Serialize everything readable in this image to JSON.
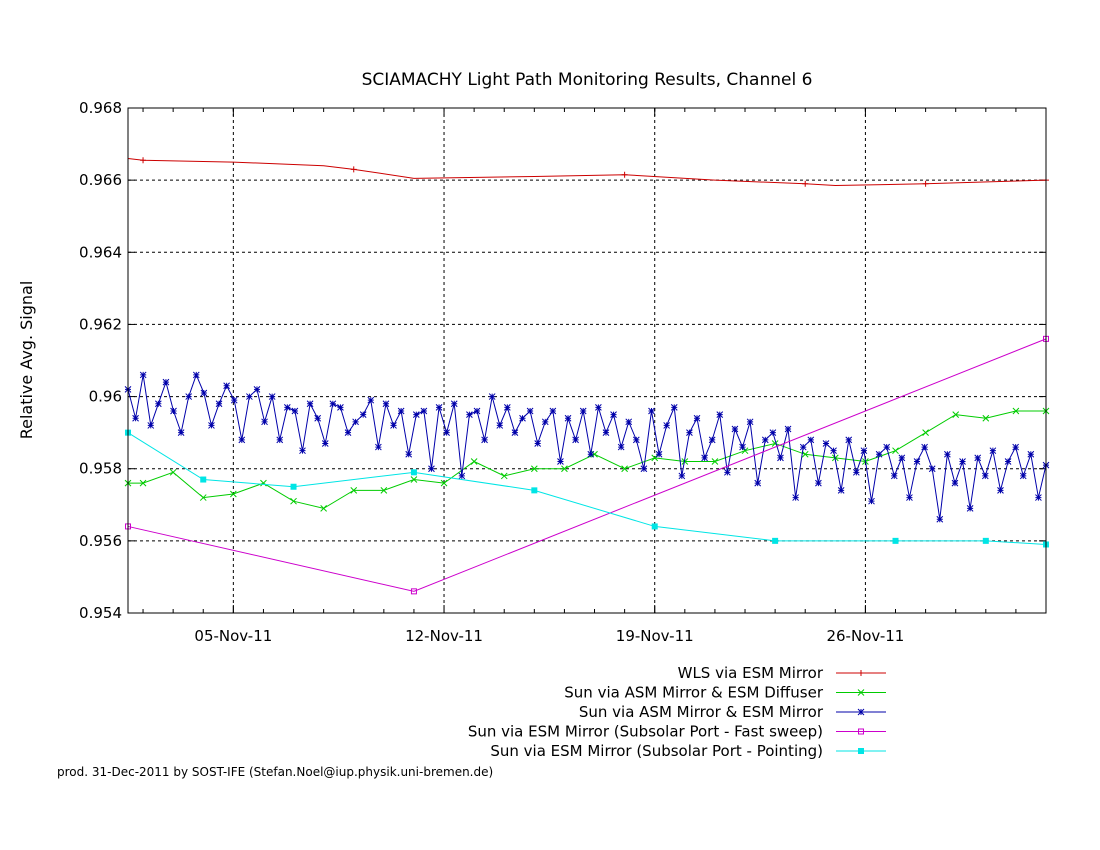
{
  "chart_data": {
    "type": "line",
    "title": "SCIAMACHY Light Path Monitoring Results, Channel 6",
    "xlabel": "",
    "ylabel": "Relative Avg. Signal",
    "ylim": [
      0.954,
      0.968
    ],
    "yticks": [
      "0.954",
      "0.956",
      "0.958",
      "0.96",
      "0.962",
      "0.964",
      "0.966",
      "0.968"
    ],
    "xlim": [
      "2011-11-01 12:00",
      "2011-12-02"
    ],
    "xticks": [
      {
        "date": "2011-11-05",
        "label": "05-Nov-11"
      },
      {
        "date": "2011-11-12",
        "label": "12-Nov-11"
      },
      {
        "date": "2011-11-19",
        "label": "19-Nov-11"
      },
      {
        "date": "2011-11-26",
        "label": "26-Nov-11"
      }
    ],
    "grid": true,
    "legend_position": "bottom-right",
    "series": [
      {
        "name": "WLS via ESM Mirror",
        "color": "#cc0000",
        "marker": "plus",
        "x": [
          "2011-11-01 12:00",
          "2011-11-02",
          "2011-11-05",
          "2011-11-08",
          "2011-11-09",
          "2011-11-11",
          "2011-11-15",
          "2011-11-18",
          "2011-11-21",
          "2011-11-24",
          "2011-11-25",
          "2011-11-28",
          "2011-12-02"
        ],
        "y": [
          0.9666,
          0.96655,
          0.9665,
          0.9664,
          0.9663,
          0.96605,
          0.9661,
          0.96615,
          0.966,
          0.9659,
          0.96585,
          0.9659,
          0.966
        ]
      },
      {
        "name": "Sun via ASM Mirror & ESM Diffuser",
        "color": "#00cc00",
        "marker": "x",
        "x": [
          "2011-11-01 12:00",
          "2011-11-02",
          "2011-11-03",
          "2011-11-04",
          "2011-11-05",
          "2011-11-06",
          "2011-11-07",
          "2011-11-08",
          "2011-11-09",
          "2011-11-10",
          "2011-11-11",
          "2011-11-12",
          "2011-11-13",
          "2011-11-14",
          "2011-11-15",
          "2011-11-16",
          "2011-11-17",
          "2011-11-18",
          "2011-11-19",
          "2011-11-20",
          "2011-11-21",
          "2011-11-22",
          "2011-11-23",
          "2011-11-24",
          "2011-11-25",
          "2011-11-26",
          "2011-11-27",
          "2011-11-28",
          "2011-11-29",
          "2011-11-30",
          "2011-12-01",
          "2011-12-02"
        ],
        "y": [
          0.9576,
          0.9576,
          0.9579,
          0.9572,
          0.9573,
          0.9576,
          0.9571,
          0.9569,
          0.9574,
          0.9574,
          0.9577,
          0.9576,
          0.9582,
          0.9578,
          0.958,
          0.958,
          0.9584,
          0.958,
          0.9583,
          0.9582,
          0.9582,
          0.9585,
          0.9587,
          0.9584,
          0.9583,
          0.9582,
          0.9585,
          0.959,
          0.9595,
          0.9594,
          0.9596,
          0.9596
        ]
      },
      {
        "name": "Sun via ASM Mirror & ESM Mirror",
        "color": "#0000aa",
        "marker": "star",
        "x_start": "2011-11-01 12:00",
        "x_end": "2011-12-02",
        "y": [
          0.9602,
          0.9594,
          0.9606,
          0.9592,
          0.9598,
          0.9604,
          0.9596,
          0.959,
          0.96,
          0.9606,
          0.9601,
          0.9592,
          0.9598,
          0.9603,
          0.9599,
          0.9588,
          0.96,
          0.9602,
          0.9593,
          0.96,
          0.9588,
          0.9597,
          0.9596,
          0.9585,
          0.9598,
          0.9594,
          0.9587,
          0.9598,
          0.9597,
          0.959,
          0.9593,
          0.9595,
          0.9599,
          0.9586,
          0.9598,
          0.9592,
          0.9596,
          0.9584,
          0.9595,
          0.9596,
          0.958,
          0.9597,
          0.959,
          0.9598,
          0.9578,
          0.9595,
          0.9596,
          0.9588,
          0.96,
          0.9592,
          0.9597,
          0.959,
          0.9594,
          0.9596,
          0.9587,
          0.9593,
          0.9596,
          0.9582,
          0.9594,
          0.9588,
          0.9596,
          0.9584,
          0.9597,
          0.959,
          0.9595,
          0.9586,
          0.9593,
          0.9588,
          0.958,
          0.9596,
          0.9584,
          0.9592,
          0.9597,
          0.9578,
          0.959,
          0.9594,
          0.9583,
          0.9588,
          0.9595,
          0.9579,
          0.9591,
          0.9586,
          0.9593,
          0.9576,
          0.9588,
          0.959,
          0.9583,
          0.9591,
          0.9572,
          0.9586,
          0.9588,
          0.9576,
          0.9587,
          0.9585,
          0.9574,
          0.9588,
          0.9579,
          0.9585,
          0.9571,
          0.9584,
          0.9586,
          0.9578,
          0.9583,
          0.9572,
          0.9582,
          0.9586,
          0.958,
          0.9566,
          0.9584,
          0.9576,
          0.9582,
          0.9569,
          0.9583,
          0.9578,
          0.9585,
          0.9574,
          0.9582,
          0.9586,
          0.9578,
          0.9584,
          0.9572,
          0.9581
        ]
      },
      {
        "name": "Sun via ESM Mirror (Subsolar Port - Fast sweep)",
        "color": "#cc00cc",
        "marker": "square-open",
        "x": [
          "2011-11-01 12:00",
          "2011-11-11",
          "2011-12-02"
        ],
        "y": [
          0.9564,
          0.9546,
          0.9616
        ]
      },
      {
        "name": "Sun via ESM Mirror (Subsolar Port - Pointing)",
        "color": "#00e5e5",
        "marker": "square",
        "x": [
          "2011-11-01 12:00",
          "2011-11-04",
          "2011-11-07",
          "2011-11-11",
          "2011-11-15",
          "2011-11-19",
          "2011-11-23",
          "2011-11-27",
          "2011-11-30",
          "2011-12-02"
        ],
        "y": [
          0.959,
          0.9577,
          0.9575,
          0.9579,
          0.9574,
          0.9564,
          0.956,
          0.956,
          0.956,
          0.9559
        ]
      }
    ]
  },
  "footer": {
    "text": "prod. 31-Dec-2011 by SOST-IFE (Stefan.Noel@iup.physik.uni-bremen.de)"
  }
}
